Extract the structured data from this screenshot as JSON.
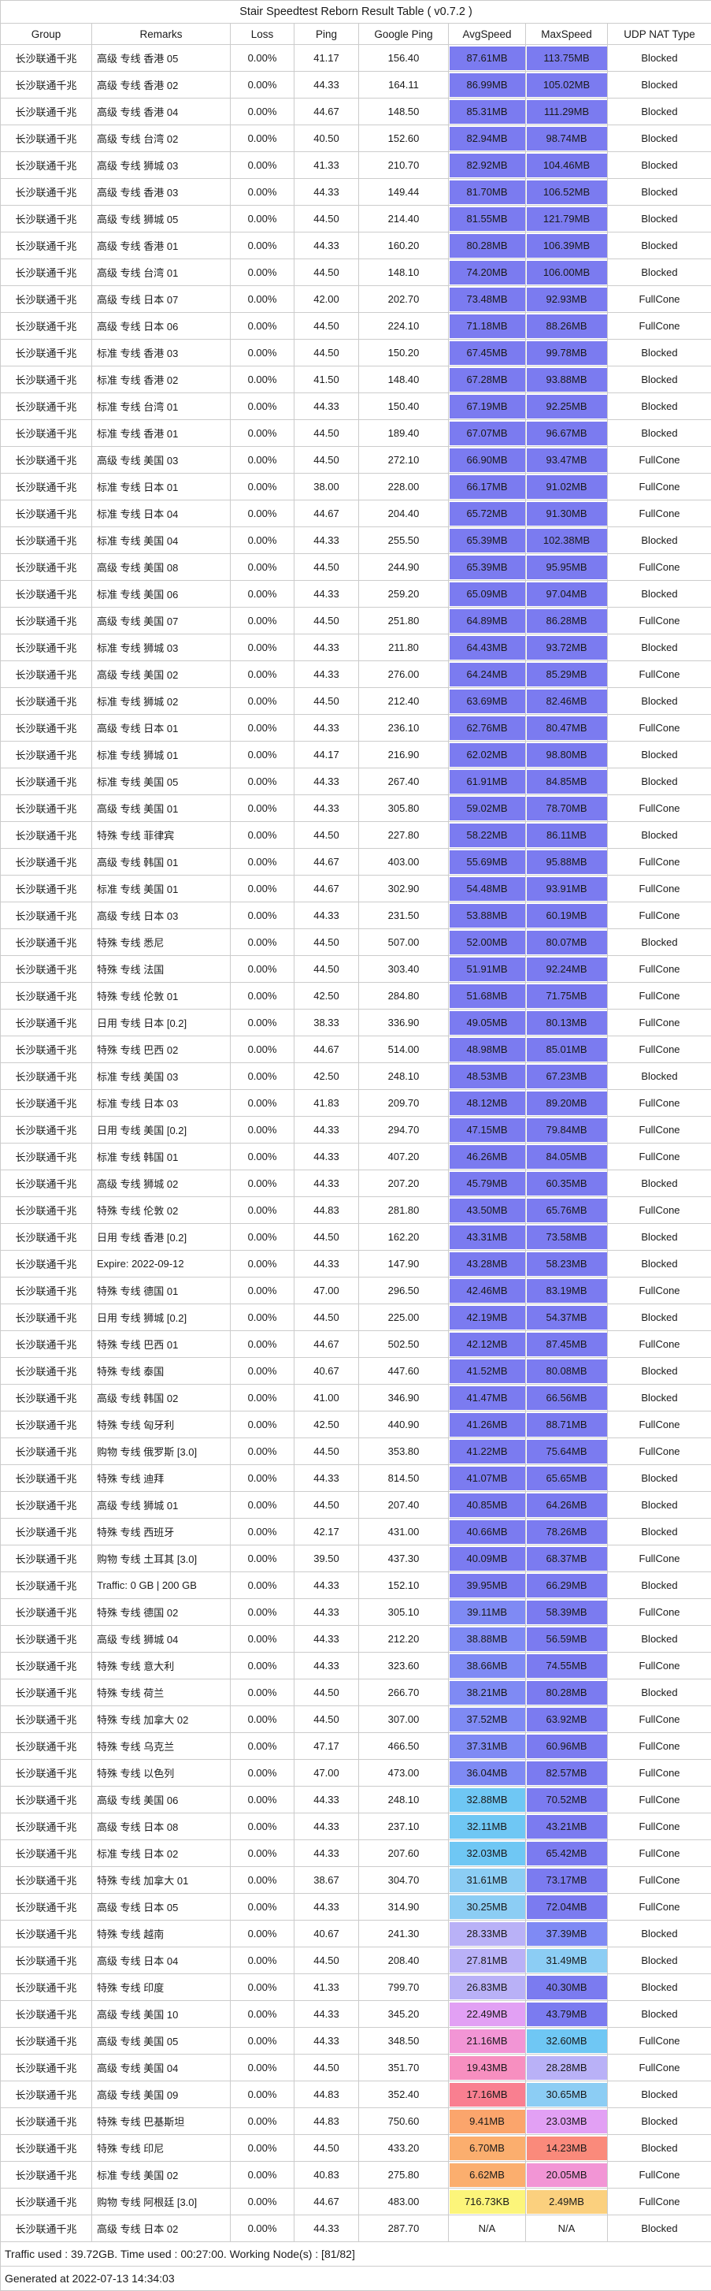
{
  "title": "Stair Speedtest Reborn Result Table ( v0.7.2 )",
  "table": {
    "columns": [
      "Group",
      "Remarks",
      "Loss",
      "Ping",
      "Google Ping",
      "AvgSpeed",
      "MaxSpeed",
      "UDP NAT Type"
    ],
    "na_value": "N/A",
    "rows": [
      [
        "长沙联通千兆",
        "高级 专线 香港 05",
        "0.00%",
        "41.17",
        "156.40",
        "87.61MB",
        "113.75MB",
        "Blocked"
      ],
      [
        "长沙联通千兆",
        "高级 专线 香港 02",
        "0.00%",
        "44.33",
        "164.11",
        "86.99MB",
        "105.02MB",
        "Blocked"
      ],
      [
        "长沙联通千兆",
        "高级 专线 香港 04",
        "0.00%",
        "44.67",
        "148.50",
        "85.31MB",
        "111.29MB",
        "Blocked"
      ],
      [
        "长沙联通千兆",
        "高级 专线 台湾 02",
        "0.00%",
        "40.50",
        "152.60",
        "82.94MB",
        "98.74MB",
        "Blocked"
      ],
      [
        "长沙联通千兆",
        "高级 专线 狮城 03",
        "0.00%",
        "41.33",
        "210.70",
        "82.92MB",
        "104.46MB",
        "Blocked"
      ],
      [
        "长沙联通千兆",
        "高级 专线 香港 03",
        "0.00%",
        "44.33",
        "149.44",
        "81.70MB",
        "106.52MB",
        "Blocked"
      ],
      [
        "长沙联通千兆",
        "高级 专线 狮城 05",
        "0.00%",
        "44.50",
        "214.40",
        "81.55MB",
        "121.79MB",
        "Blocked"
      ],
      [
        "长沙联通千兆",
        "高级 专线 香港 01",
        "0.00%",
        "44.33",
        "160.20",
        "80.28MB",
        "106.39MB",
        "Blocked"
      ],
      [
        "长沙联通千兆",
        "高级 专线 台湾 01",
        "0.00%",
        "44.50",
        "148.10",
        "74.20MB",
        "106.00MB",
        "Blocked"
      ],
      [
        "长沙联通千兆",
        "高级 专线 日本 07",
        "0.00%",
        "42.00",
        "202.70",
        "73.48MB",
        "92.93MB",
        "FullCone"
      ],
      [
        "长沙联通千兆",
        "高级 专线 日本 06",
        "0.00%",
        "44.50",
        "224.10",
        "71.18MB",
        "88.26MB",
        "FullCone"
      ],
      [
        "长沙联通千兆",
        "标准 专线 香港 03",
        "0.00%",
        "44.50",
        "150.20",
        "67.45MB",
        "99.78MB",
        "Blocked"
      ],
      [
        "长沙联通千兆",
        "标准 专线 香港 02",
        "0.00%",
        "41.50",
        "148.40",
        "67.28MB",
        "93.88MB",
        "Blocked"
      ],
      [
        "长沙联通千兆",
        "标准 专线 台湾 01",
        "0.00%",
        "44.33",
        "150.40",
        "67.19MB",
        "92.25MB",
        "Blocked"
      ],
      [
        "长沙联通千兆",
        "标准 专线 香港 01",
        "0.00%",
        "44.50",
        "189.40",
        "67.07MB",
        "96.67MB",
        "Blocked"
      ],
      [
        "长沙联通千兆",
        "高级 专线 美国 03",
        "0.00%",
        "44.50",
        "272.10",
        "66.90MB",
        "93.47MB",
        "FullCone"
      ],
      [
        "长沙联通千兆",
        "标准 专线 日本 01",
        "0.00%",
        "38.00",
        "228.00",
        "66.17MB",
        "91.02MB",
        "FullCone"
      ],
      [
        "长沙联通千兆",
        "标准 专线 日本 04",
        "0.00%",
        "44.67",
        "204.40",
        "65.72MB",
        "91.30MB",
        "FullCone"
      ],
      [
        "长沙联通千兆",
        "标准 专线 美国 04",
        "0.00%",
        "44.33",
        "255.50",
        "65.39MB",
        "102.38MB",
        "Blocked"
      ],
      [
        "长沙联通千兆",
        "高级 专线 美国 08",
        "0.00%",
        "44.50",
        "244.90",
        "65.39MB",
        "95.95MB",
        "FullCone"
      ],
      [
        "长沙联通千兆",
        "标准 专线 美国 06",
        "0.00%",
        "44.33",
        "259.20",
        "65.09MB",
        "97.04MB",
        "Blocked"
      ],
      [
        "长沙联通千兆",
        "高级 专线 美国 07",
        "0.00%",
        "44.50",
        "251.80",
        "64.89MB",
        "86.28MB",
        "FullCone"
      ],
      [
        "长沙联通千兆",
        "标准 专线 狮城 03",
        "0.00%",
        "44.33",
        "211.80",
        "64.43MB",
        "93.72MB",
        "Blocked"
      ],
      [
        "长沙联通千兆",
        "高级 专线 美国 02",
        "0.00%",
        "44.33",
        "276.00",
        "64.24MB",
        "85.29MB",
        "FullCone"
      ],
      [
        "长沙联通千兆",
        "标准 专线 狮城 02",
        "0.00%",
        "44.50",
        "212.40",
        "63.69MB",
        "82.46MB",
        "Blocked"
      ],
      [
        "长沙联通千兆",
        "高级 专线 日本 01",
        "0.00%",
        "44.33",
        "236.10",
        "62.76MB",
        "80.47MB",
        "FullCone"
      ],
      [
        "长沙联通千兆",
        "标准 专线 狮城 01",
        "0.00%",
        "44.17",
        "216.90",
        "62.02MB",
        "98.80MB",
        "Blocked"
      ],
      [
        "长沙联通千兆",
        "标准 专线 美国 05",
        "0.00%",
        "44.33",
        "267.40",
        "61.91MB",
        "84.85MB",
        "Blocked"
      ],
      [
        "长沙联通千兆",
        "高级 专线 美国 01",
        "0.00%",
        "44.33",
        "305.80",
        "59.02MB",
        "78.70MB",
        "FullCone"
      ],
      [
        "长沙联通千兆",
        "特殊 专线 菲律宾",
        "0.00%",
        "44.50",
        "227.80",
        "58.22MB",
        "86.11MB",
        "Blocked"
      ],
      [
        "长沙联通千兆",
        "高级 专线 韩国 01",
        "0.00%",
        "44.67",
        "403.00",
        "55.69MB",
        "95.88MB",
        "FullCone"
      ],
      [
        "长沙联通千兆",
        "标准 专线 美国 01",
        "0.00%",
        "44.67",
        "302.90",
        "54.48MB",
        "93.91MB",
        "FullCone"
      ],
      [
        "长沙联通千兆",
        "高级 专线 日本 03",
        "0.00%",
        "44.33",
        "231.50",
        "53.88MB",
        "60.19MB",
        "FullCone"
      ],
      [
        "长沙联通千兆",
        "特殊 专线 悉尼",
        "0.00%",
        "44.50",
        "507.00",
        "52.00MB",
        "80.07MB",
        "Blocked"
      ],
      [
        "长沙联通千兆",
        "特殊 专线 法国",
        "0.00%",
        "44.50",
        "303.40",
        "51.91MB",
        "92.24MB",
        "FullCone"
      ],
      [
        "长沙联通千兆",
        "特殊 专线 伦敦 01",
        "0.00%",
        "42.50",
        "284.80",
        "51.68MB",
        "71.75MB",
        "FullCone"
      ],
      [
        "长沙联通千兆",
        "日用 专线 日本 [0.2]",
        "0.00%",
        "38.33",
        "336.90",
        "49.05MB",
        "80.13MB",
        "FullCone"
      ],
      [
        "长沙联通千兆",
        "特殊 专线 巴西 02",
        "0.00%",
        "44.67",
        "514.00",
        "48.98MB",
        "85.01MB",
        "FullCone"
      ],
      [
        "长沙联通千兆",
        "标准 专线 美国 03",
        "0.00%",
        "42.50",
        "248.10",
        "48.53MB",
        "67.23MB",
        "Blocked"
      ],
      [
        "长沙联通千兆",
        "标准 专线 日本 03",
        "0.00%",
        "41.83",
        "209.70",
        "48.12MB",
        "89.20MB",
        "FullCone"
      ],
      [
        "长沙联通千兆",
        "日用 专线 美国 [0.2]",
        "0.00%",
        "44.33",
        "294.70",
        "47.15MB",
        "79.84MB",
        "FullCone"
      ],
      [
        "长沙联通千兆",
        "标准 专线 韩国 01",
        "0.00%",
        "44.33",
        "407.20",
        "46.26MB",
        "84.05MB",
        "FullCone"
      ],
      [
        "长沙联通千兆",
        "高级 专线 狮城 02",
        "0.00%",
        "44.33",
        "207.20",
        "45.79MB",
        "60.35MB",
        "Blocked"
      ],
      [
        "长沙联通千兆",
        "特殊 专线 伦敦 02",
        "0.00%",
        "44.83",
        "281.80",
        "43.50MB",
        "65.76MB",
        "FullCone"
      ],
      [
        "长沙联通千兆",
        "日用 专线 香港 [0.2]",
        "0.00%",
        "44.50",
        "162.20",
        "43.31MB",
        "73.58MB",
        "Blocked"
      ],
      [
        "长沙联通千兆",
        "Expire: 2022-09-12",
        "0.00%",
        "44.33",
        "147.90",
        "43.28MB",
        "58.23MB",
        "Blocked"
      ],
      [
        "长沙联通千兆",
        "特殊 专线 德国 01",
        "0.00%",
        "47.00",
        "296.50",
        "42.46MB",
        "83.19MB",
        "FullCone"
      ],
      [
        "长沙联通千兆",
        "日用 专线 狮城 [0.2]",
        "0.00%",
        "44.50",
        "225.00",
        "42.19MB",
        "54.37MB",
        "Blocked"
      ],
      [
        "长沙联通千兆",
        "特殊 专线 巴西 01",
        "0.00%",
        "44.67",
        "502.50",
        "42.12MB",
        "87.45MB",
        "FullCone"
      ],
      [
        "长沙联通千兆",
        "特殊 专线 泰国",
        "0.00%",
        "40.67",
        "447.60",
        "41.52MB",
        "80.08MB",
        "Blocked"
      ],
      [
        "长沙联通千兆",
        "高级 专线 韩国 02",
        "0.00%",
        "41.00",
        "346.90",
        "41.47MB",
        "66.56MB",
        "Blocked"
      ],
      [
        "长沙联通千兆",
        "特殊 专线 匈牙利",
        "0.00%",
        "42.50",
        "440.90",
        "41.26MB",
        "88.71MB",
        "FullCone"
      ],
      [
        "长沙联通千兆",
        "购物 专线 俄罗斯 [3.0]",
        "0.00%",
        "44.50",
        "353.80",
        "41.22MB",
        "75.64MB",
        "FullCone"
      ],
      [
        "长沙联通千兆",
        "特殊 专线 迪拜",
        "0.00%",
        "44.33",
        "814.50",
        "41.07MB",
        "65.65MB",
        "Blocked"
      ],
      [
        "长沙联通千兆",
        "高级 专线 狮城 01",
        "0.00%",
        "44.50",
        "207.40",
        "40.85MB",
        "64.26MB",
        "Blocked"
      ],
      [
        "长沙联通千兆",
        "特殊 专线 西班牙",
        "0.00%",
        "42.17",
        "431.00",
        "40.66MB",
        "78.26MB",
        "Blocked"
      ],
      [
        "长沙联通千兆",
        "购物 专线 土耳其 [3.0]",
        "0.00%",
        "39.50",
        "437.30",
        "40.09MB",
        "68.37MB",
        "FullCone"
      ],
      [
        "长沙联通千兆",
        "Traffic: 0 GB | 200 GB",
        "0.00%",
        "44.33",
        "152.10",
        "39.95MB",
        "66.29MB",
        "Blocked"
      ],
      [
        "长沙联通千兆",
        "特殊 专线 德国 02",
        "0.00%",
        "44.33",
        "305.10",
        "39.11MB",
        "58.39MB",
        "FullCone"
      ],
      [
        "长沙联通千兆",
        "高级 专线 狮城 04",
        "0.00%",
        "44.33",
        "212.20",
        "38.88MB",
        "56.59MB",
        "Blocked"
      ],
      [
        "长沙联通千兆",
        "特殊 专线 意大利",
        "0.00%",
        "44.33",
        "323.60",
        "38.66MB",
        "74.55MB",
        "FullCone"
      ],
      [
        "长沙联通千兆",
        "特殊 专线 荷兰",
        "0.00%",
        "44.50",
        "266.70",
        "38.21MB",
        "80.28MB",
        "Blocked"
      ],
      [
        "长沙联通千兆",
        "特殊 专线 加拿大 02",
        "0.00%",
        "44.50",
        "307.00",
        "37.52MB",
        "63.92MB",
        "FullCone"
      ],
      [
        "长沙联通千兆",
        "特殊 专线 乌克兰",
        "0.00%",
        "47.17",
        "466.50",
        "37.31MB",
        "60.96MB",
        "FullCone"
      ],
      [
        "长沙联通千兆",
        "特殊 专线 以色列",
        "0.00%",
        "47.00",
        "473.00",
        "36.04MB",
        "82.57MB",
        "FullCone"
      ],
      [
        "长沙联通千兆",
        "高级 专线 美国 06",
        "0.00%",
        "44.33",
        "248.10",
        "32.88MB",
        "70.52MB",
        "FullCone"
      ],
      [
        "长沙联通千兆",
        "高级 专线 日本 08",
        "0.00%",
        "44.33",
        "237.10",
        "32.11MB",
        "43.21MB",
        "FullCone"
      ],
      [
        "长沙联通千兆",
        "标准 专线 日本 02",
        "0.00%",
        "44.33",
        "207.60",
        "32.03MB",
        "65.42MB",
        "FullCone"
      ],
      [
        "长沙联通千兆",
        "特殊 专线 加拿大 01",
        "0.00%",
        "38.67",
        "304.70",
        "31.61MB",
        "73.17MB",
        "FullCone"
      ],
      [
        "长沙联通千兆",
        "高级 专线 日本 05",
        "0.00%",
        "44.33",
        "314.90",
        "30.25MB",
        "72.04MB",
        "FullCone"
      ],
      [
        "长沙联通千兆",
        "特殊 专线 越南",
        "0.00%",
        "40.67",
        "241.30",
        "28.33MB",
        "37.39MB",
        "Blocked"
      ],
      [
        "长沙联通千兆",
        "高级 专线 日本 04",
        "0.00%",
        "44.50",
        "208.40",
        "27.81MB",
        "31.49MB",
        "Blocked"
      ],
      [
        "长沙联通千兆",
        "特殊 专线 印度",
        "0.00%",
        "41.33",
        "799.70",
        "26.83MB",
        "40.30MB",
        "Blocked"
      ],
      [
        "长沙联通千兆",
        "高级 专线 美国 10",
        "0.00%",
        "44.33",
        "345.20",
        "22.49MB",
        "43.79MB",
        "Blocked"
      ],
      [
        "长沙联通千兆",
        "高级 专线 美国 05",
        "0.00%",
        "44.33",
        "348.50",
        "21.16MB",
        "32.60MB",
        "FullCone"
      ],
      [
        "长沙联通千兆",
        "高级 专线 美国 04",
        "0.00%",
        "44.50",
        "351.70",
        "19.43MB",
        "28.28MB",
        "FullCone"
      ],
      [
        "长沙联通千兆",
        "高级 专线 美国 09",
        "0.00%",
        "44.83",
        "352.40",
        "17.16MB",
        "30.65MB",
        "Blocked"
      ],
      [
        "长沙联通千兆",
        "特殊 专线 巴基斯坦",
        "0.00%",
        "44.83",
        "750.60",
        "9.41MB",
        "23.03MB",
        "Blocked"
      ],
      [
        "长沙联通千兆",
        "特殊 专线 印尼",
        "0.00%",
        "44.50",
        "433.20",
        "6.70MB",
        "14.23MB",
        "Blocked"
      ],
      [
        "长沙联通千兆",
        "标准 专线 美国 02",
        "0.00%",
        "40.83",
        "275.80",
        "6.62MB",
        "20.05MB",
        "FullCone"
      ],
      [
        "长沙联通千兆",
        "购物 专线 阿根廷 [3.0]",
        "0.00%",
        "44.67",
        "483.00",
        "716.73KB",
        "2.49MB",
        "FullCone"
      ],
      [
        "长沙联通千兆",
        "高级 专线 日本 02",
        "0.00%",
        "44.33",
        "287.70",
        "N/A",
        "N/A",
        "Blocked"
      ]
    ]
  },
  "footer": {
    "summary": "Traffic used : 39.72GB. Time used : 00:27:00. Working Node(s) : [81/82]",
    "generated": "Generated at 2022-07-13 14:34:03"
  },
  "colors": {
    "grid": "#cccccc",
    "na_bg": "#ffffff",
    "speed_scale": [
      [
        39.5,
        "#7b7bf0"
      ],
      [
        35.5,
        "#7f8af4"
      ],
      [
        31.8,
        "#6fc7f4"
      ],
      [
        29.5,
        "#8ccdf4"
      ],
      [
        24.5,
        "#b9b1f7"
      ],
      [
        21.8,
        "#e2a0f4"
      ],
      [
        19.8,
        "#f295d5"
      ],
      [
        18.5,
        "#f78fc0"
      ],
      [
        16.0,
        "#f97f90"
      ],
      [
        11.0,
        "#fa8a7b"
      ],
      [
        8.0,
        "#fba56c"
      ],
      [
        4.5,
        "#fbae6e"
      ],
      [
        1.5,
        "#fbd07e"
      ],
      [
        0.0,
        "#fcf57a"
      ]
    ]
  }
}
